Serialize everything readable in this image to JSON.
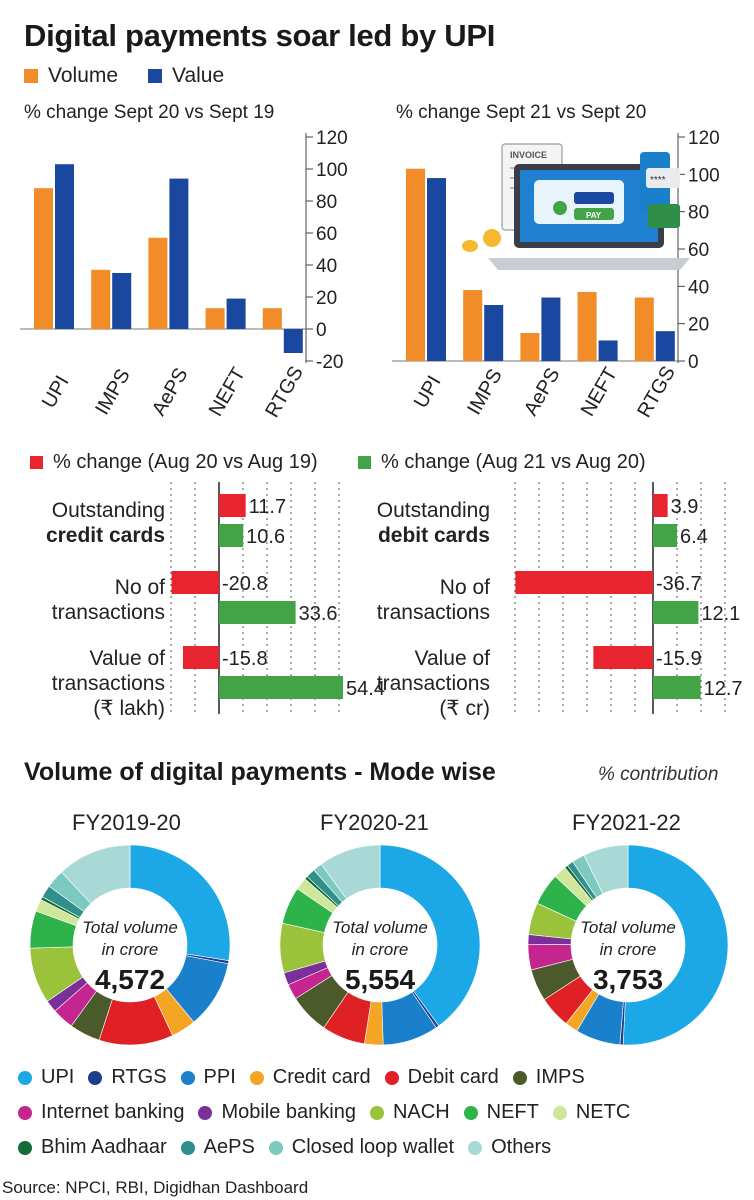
{
  "title": "Digital payments soar led by UPI",
  "colors": {
    "volume": "#f28c28",
    "value": "#1a48a0",
    "red": "#e8242e",
    "green": "#43a447"
  },
  "legend": {
    "volume": "Volume",
    "value": "Value"
  },
  "chart_data": [
    {
      "type": "bar",
      "title": "% change Sept 20 vs Sept 19",
      "categories": [
        "UPI",
        "IMPS",
        "AePS",
        "NEFT",
        "RTGS"
      ],
      "series": [
        {
          "name": "Volume",
          "values": [
            88,
            37,
            57,
            13,
            13
          ]
        },
        {
          "name": "Value",
          "values": [
            103,
            35,
            94,
            19,
            -15
          ]
        }
      ],
      "yticks": [
        "120",
        "100",
        "80",
        "60",
        "40",
        "20",
        "0",
        "-20"
      ],
      "ylim": [
        -20,
        120
      ]
    },
    {
      "type": "bar",
      "title": "% change Sept 21 vs Sept 20",
      "categories": [
        "UPI",
        "IMPS",
        "AePS",
        "NEFT",
        "RTGS"
      ],
      "series": [
        {
          "name": "Volume",
          "values": [
            103,
            38,
            15,
            37,
            34
          ]
        },
        {
          "name": "Value",
          "values": [
            98,
            30,
            34,
            11,
            16
          ]
        }
      ],
      "yticks": [
        "120",
        "100",
        "80",
        "60",
        "40",
        "20",
        "0"
      ],
      "ylim": [
        0,
        120
      ]
    },
    {
      "type": "bar",
      "orientation": "horizontal",
      "title": "credit cards",
      "legend": [
        "% change (Aug 20 vs Aug 19)",
        "% change (Aug 21 vs Aug 20)"
      ],
      "rows": [
        {
          "l1": "Outstanding",
          "l2": "credit cards",
          "l3": "",
          "red": 11.7,
          "green": 10.6,
          "red_label": "11.7",
          "green_label": "10.6"
        },
        {
          "l1": "No of",
          "l2": "transactions",
          "l3": "",
          "red": -20.8,
          "green": 33.6,
          "red_label": "-20.8",
          "green_label": "33.6"
        },
        {
          "l1": "Value of",
          "l2": "transactions",
          "l3": "(₹ lakh)",
          "red": -15.8,
          "green": 54.4,
          "red_label": "-15.8",
          "green_label": "54.4"
        }
      ]
    },
    {
      "type": "bar",
      "orientation": "horizontal",
      "title": "debit cards",
      "legend": [
        "% change (Aug 20 vs Aug 19)",
        "% change (Aug 21 vs Aug 20)"
      ],
      "rows": [
        {
          "l1": "Outstanding",
          "l2": "debit cards",
          "l3": "",
          "red": 3.9,
          "green": 6.4,
          "red_label": "3.9",
          "green_label": "6.4"
        },
        {
          "l1": "No of",
          "l2": "transactions",
          "l3": "",
          "red": -36.7,
          "green": 12.1,
          "red_label": "-36.7",
          "green_label": "12.1"
        },
        {
          "l1": "Value of",
          "l2": "transactions",
          "l3": "(₹ cr)",
          "red": -15.9,
          "green": 12.7,
          "red_label": "-15.9",
          "green_label": "12.7"
        }
      ]
    },
    {
      "type": "pie",
      "title": "FY2019-20",
      "center_line1": "Total volume",
      "center_line2": "in crore",
      "total": "4,572",
      "slices": [
        {
          "name": "UPI",
          "value": 27.5
        },
        {
          "name": "RTGS",
          "value": 0.5
        },
        {
          "name": "PPI",
          "value": 11
        },
        {
          "name": "Credit card",
          "value": 4
        },
        {
          "name": "Debit card",
          "value": 12
        },
        {
          "name": "IMPS",
          "value": 5
        },
        {
          "name": "Internet banking",
          "value": 3.5
        },
        {
          "name": "Mobile banking",
          "value": 2
        },
        {
          "name": "NACH",
          "value": 9
        },
        {
          "name": "NEFT",
          "value": 6
        },
        {
          "name": "NETC",
          "value": 2
        },
        {
          "name": "Bhim Aadhaar",
          "value": 0.5
        },
        {
          "name": "AePS",
          "value": 2
        },
        {
          "name": "Closed loop wallet",
          "value": 3
        },
        {
          "name": "Others",
          "value": 12
        }
      ]
    },
    {
      "type": "pie",
      "title": "FY2020-21",
      "center_line1": "Total volume",
      "center_line2": "in crore",
      "total": "5,554",
      "slices": [
        {
          "name": "UPI",
          "value": 40
        },
        {
          "name": "RTGS",
          "value": 0.5
        },
        {
          "name": "PPI",
          "value": 9
        },
        {
          "name": "Credit card",
          "value": 3
        },
        {
          "name": "Debit card",
          "value": 7
        },
        {
          "name": "IMPS",
          "value": 6.5
        },
        {
          "name": "Internet banking",
          "value": 2.5
        },
        {
          "name": "Mobile banking",
          "value": 2
        },
        {
          "name": "NACH",
          "value": 8
        },
        {
          "name": "NEFT",
          "value": 6
        },
        {
          "name": "NETC",
          "value": 2
        },
        {
          "name": "Bhim Aadhaar",
          "value": 0.5
        },
        {
          "name": "AePS",
          "value": 1.5
        },
        {
          "name": "Closed loop wallet",
          "value": 1.5
        },
        {
          "name": "Others",
          "value": 10
        }
      ]
    },
    {
      "type": "pie",
      "title": "FY2021-22",
      "center_line1": "Total volume",
      "center_line2": "in crore",
      "total": "3,753",
      "slices": [
        {
          "name": "UPI",
          "value": 49
        },
        {
          "name": "RTGS",
          "value": 0.5
        },
        {
          "name": "PPI",
          "value": 7
        },
        {
          "name": "Credit card",
          "value": 2
        },
        {
          "name": "Debit card",
          "value": 5
        },
        {
          "name": "IMPS",
          "value": 5
        },
        {
          "name": "Internet banking",
          "value": 4
        },
        {
          "name": "Mobile banking",
          "value": 1.5
        },
        {
          "name": "NACH",
          "value": 5
        },
        {
          "name": "NEFT",
          "value": 5
        },
        {
          "name": "NETC",
          "value": 2
        },
        {
          "name": "Bhim Aadhaar",
          "value": 0.5
        },
        {
          "name": "AePS",
          "value": 1
        },
        {
          "name": "Closed loop wallet",
          "value": 2
        },
        {
          "name": "Others",
          "value": 7
        }
      ]
    }
  ],
  "section2": {
    "title": "Volume of digital payments - Mode wise",
    "note": "% contribution"
  },
  "mode_legend": [
    {
      "name": "UPI",
      "color": "#1ca8e6"
    },
    {
      "name": "RTGS",
      "color": "#1b3f8c"
    },
    {
      "name": "PPI",
      "color": "#1a80cc"
    },
    {
      "name": "Credit card",
      "color": "#f5a524"
    },
    {
      "name": "Debit card",
      "color": "#df2126"
    },
    {
      "name": "IMPS",
      "color": "#4b5a2a"
    },
    {
      "name": "Internet banking",
      "color": "#c4258e"
    },
    {
      "name": "Mobile banking",
      "color": "#7a2f99"
    },
    {
      "name": "NACH",
      "color": "#9ac33b"
    },
    {
      "name": "NEFT",
      "color": "#2db34a"
    },
    {
      "name": "NETC",
      "color": "#cfe79a"
    },
    {
      "name": "Bhim Aadhaar",
      "color": "#156b35"
    },
    {
      "name": "AePS",
      "color": "#2f8f8a"
    },
    {
      "name": "Closed loop wallet",
      "color": "#7cc9c0"
    },
    {
      "name": "Others",
      "color": "#a9d9d6"
    }
  ],
  "illustration": {
    "invoice_label": "INVOICE",
    "pay_label": "PAY",
    "pin_mask": "****"
  },
  "source": "Source: NPCI, RBI, Digidhan Dashboard"
}
